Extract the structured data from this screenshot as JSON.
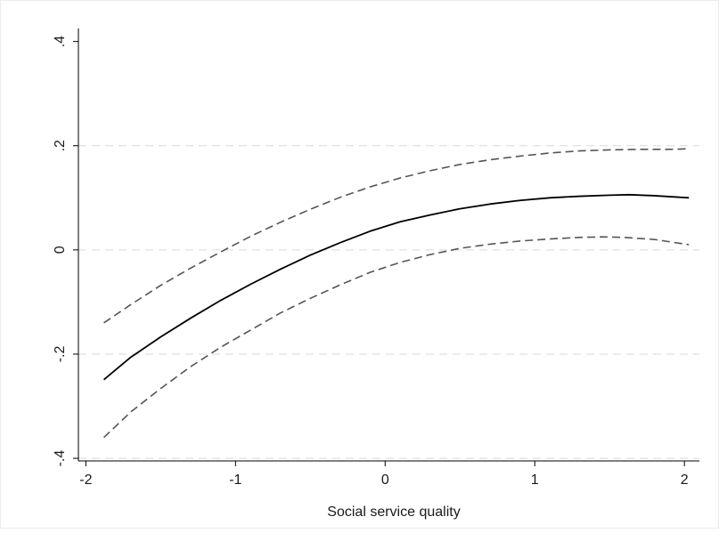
{
  "chart_data": {
    "type": "line",
    "xlabel": "Social service quality",
    "ylabel": "",
    "xlim": [
      -2.05,
      2.1
    ],
    "ylim": [
      -0.405,
      0.425
    ],
    "x_ticks": [
      -2,
      -1,
      0,
      1,
      2
    ],
    "x_tick_labels": [
      "-2",
      "-1",
      "0",
      "1",
      "2"
    ],
    "y_ticks": [
      -0.4,
      -0.2,
      0,
      0.2,
      0.4
    ],
    "y_tick_labels": [
      "-.4",
      "-.2",
      "0",
      ".2",
      ".4"
    ],
    "grid": "horizontal dashed",
    "series": [
      {
        "style": "solid",
        "color": "#000000",
        "x": [
          -1.88,
          -1.7,
          -1.5,
          -1.3,
          -1.1,
          -0.9,
          -0.7,
          -0.5,
          -0.3,
          -0.1,
          0.1,
          0.3,
          0.5,
          0.7,
          0.9,
          1.1,
          1.3,
          1.5,
          1.63,
          1.8,
          2.03
        ],
        "y": [
          -0.249,
          -0.206,
          -0.167,
          -0.131,
          -0.097,
          -0.066,
          -0.037,
          -0.01,
          0.014,
          0.036,
          0.054,
          0.067,
          0.079,
          0.088,
          0.095,
          0.1,
          0.103,
          0.105,
          0.106,
          0.104,
          0.1
        ]
      },
      {
        "style": "dashed",
        "color": "#555555",
        "x": [
          -1.88,
          -1.7,
          -1.5,
          -1.3,
          -1.1,
          -0.9,
          -0.7,
          -0.5,
          -0.3,
          -0.1,
          0.1,
          0.3,
          0.5,
          0.7,
          0.9,
          1.1,
          1.3,
          1.5,
          1.7,
          1.9,
          2.03
        ],
        "y": [
          -0.14,
          -0.105,
          -0.068,
          -0.035,
          -0.004,
          0.026,
          0.053,
          0.078,
          0.101,
          0.121,
          0.138,
          0.152,
          0.164,
          0.173,
          0.18,
          0.186,
          0.19,
          0.192,
          0.193,
          0.193,
          0.194
        ]
      },
      {
        "style": "dashed",
        "color": "#555555",
        "x": [
          -1.88,
          -1.7,
          -1.5,
          -1.3,
          -1.1,
          -0.9,
          -0.7,
          -0.5,
          -0.3,
          -0.1,
          0.1,
          0.3,
          0.5,
          0.7,
          0.9,
          1.1,
          1.3,
          1.45,
          1.6,
          1.8,
          2.03
        ],
        "y": [
          -0.36,
          -0.311,
          -0.266,
          -0.224,
          -0.187,
          -0.154,
          -0.121,
          -0.093,
          -0.067,
          -0.043,
          -0.024,
          -0.009,
          0.003,
          0.011,
          0.017,
          0.021,
          0.024,
          0.025,
          0.024,
          0.02,
          0.01
        ]
      }
    ],
    "colors": {
      "background": "#ffffff",
      "axis": "#000000",
      "grid": "#d9d9d9",
      "frame": "#e8ecef"
    }
  }
}
